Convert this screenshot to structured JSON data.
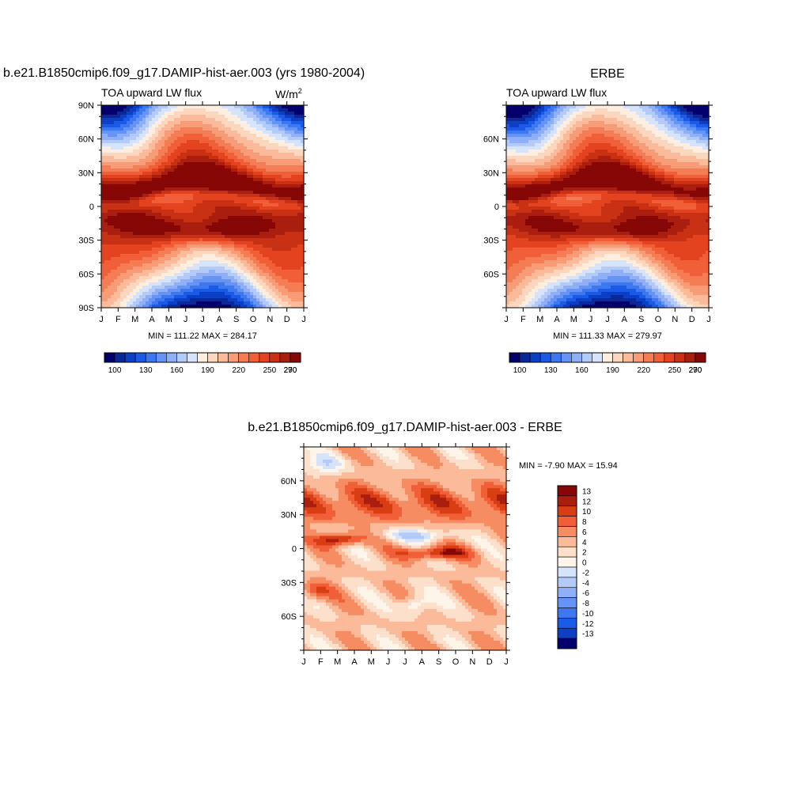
{
  "figure": {
    "top_left": {
      "title": "b.e21.B1850cmip6.f09_g17.DAMIP-hist-aer.003 (yrs 1980-2004)",
      "subtitle": "TOA upward LW flux",
      "units_base": "W/m",
      "units_exp": "2",
      "stats": "MIN = 111.22 MAX = 284.17"
    },
    "top_right": {
      "title": "ERBE",
      "subtitle": "TOA upward LW flux",
      "stats": "MIN = 111.33 MAX = 279.97"
    },
    "bottom": {
      "title": "b.e21.B1850cmip6.f09_g17.DAMIP-hist-aer.003 - ERBE",
      "stats": "MIN =  -7.90 MAX =  15.94"
    }
  },
  "chart_data": [
    {
      "type": "heatmap",
      "panel": "model",
      "title": "b.e21.B1850cmip6.f09_g17.DAMIP-hist-aer.003 (yrs 1980-2004)",
      "subtitle": "TOA upward LW flux",
      "units": "W/m2",
      "x_categories": [
        "J",
        "F",
        "M",
        "A",
        "M",
        "J",
        "J",
        "A",
        "S",
        "O",
        "N",
        "D",
        "J"
      ],
      "y_ticks": [
        "90N",
        "60N",
        "30N",
        "0",
        "30S",
        "60S",
        "90S"
      ],
      "ylim": [
        -90,
        90
      ],
      "min": 111.22,
      "max": 284.17,
      "colorbar_levels": [
        100,
        110,
        120,
        130,
        140,
        150,
        160,
        170,
        180,
        190,
        200,
        210,
        220,
        230,
        240,
        250,
        260,
        270,
        280,
        290
      ],
      "colorbar_labels": [
        "100",
        "130",
        "160",
        "190",
        "220",
        "250",
        "270",
        "290"
      ]
    },
    {
      "type": "heatmap",
      "panel": "observations",
      "title": "ERBE",
      "subtitle": "TOA upward LW flux",
      "x_categories": [
        "J",
        "F",
        "M",
        "A",
        "M",
        "J",
        "J",
        "A",
        "S",
        "O",
        "N",
        "D",
        "J"
      ],
      "y_ticks": [
        "60N",
        "30N",
        "0",
        "30S",
        "60S"
      ],
      "ylim": [
        -90,
        90
      ],
      "min": 111.33,
      "max": 279.97,
      "colorbar_levels": [
        100,
        110,
        120,
        130,
        140,
        150,
        160,
        170,
        180,
        190,
        200,
        210,
        220,
        230,
        240,
        250,
        260,
        270,
        280,
        290
      ],
      "colorbar_labels": [
        "100",
        "130",
        "160",
        "190",
        "220",
        "250",
        "270",
        "290"
      ]
    },
    {
      "type": "heatmap",
      "panel": "difference",
      "title": "b.e21.B1850cmip6.f09_g17.DAMIP-hist-aer.003 - ERBE",
      "x_categories": [
        "J",
        "F",
        "M",
        "A",
        "M",
        "J",
        "J",
        "A",
        "S",
        "O",
        "N",
        "D",
        "J"
      ],
      "y_ticks": [
        "60N",
        "30N",
        "0",
        "30S",
        "60S"
      ],
      "ylim": [
        -90,
        90
      ],
      "min": -7.9,
      "max": 15.94,
      "colorbar_levels": [
        -13,
        -12,
        -10,
        -8,
        -6,
        -4,
        -2,
        0,
        2,
        4,
        6,
        8,
        10,
        12,
        13
      ],
      "colorbar_labels": [
        "13",
        "12",
        "10",
        "8",
        "6",
        "4",
        "2",
        "0",
        "-2",
        "-4",
        "-6",
        "-8",
        "-10",
        "-12",
        "-13"
      ]
    }
  ],
  "colors": {
    "full_scale": [
      "#03006c",
      "#0a2896",
      "#0d3fc4",
      "#1a5ae6",
      "#3d78f0",
      "#6693f6",
      "#8fb0f8",
      "#b4cbf9",
      "#d5e3fb",
      "#fdeee0",
      "#fcd7bd",
      "#fbba9a",
      "#f89c78",
      "#f57d56",
      "#f05f38",
      "#e3441f",
      "#c83114",
      "#a91e0e",
      "#870707"
    ],
    "diff_scale": [
      "#870707",
      "#a91e0e",
      "#d93d14",
      "#f05f38",
      "#f68d62",
      "#fbba9a",
      "#fde0cc",
      "#fef5ea",
      "#d5e3fb",
      "#b4cbf9",
      "#8fb0f8",
      "#6693f6",
      "#3d78f0",
      "#1a5ae6",
      "#0d3fc4",
      "#03006c"
    ]
  }
}
